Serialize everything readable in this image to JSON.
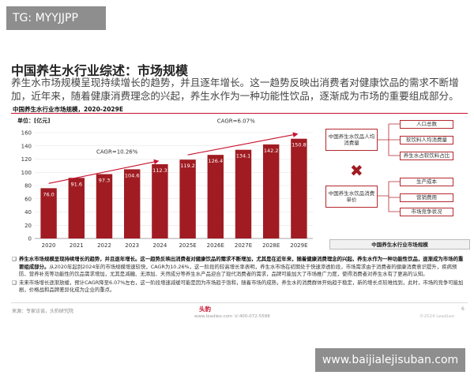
{
  "tag": "TG: MYYJJPP",
  "watermark": "www.baijialejisuban.com",
  "header": {
    "title": "中国养生水行业综述：市场规模",
    "lead": "养生水市场规模呈现持续增长的趋势，并且逐年增长。这一趋势反映出消费者对健康饮品的需求不断增加，近年来，随着健康消费理念的兴起，养生水作为一种功能性饮品，逐渐成为市场的重要组成部分。"
  },
  "chart_data": {
    "type": "bar",
    "title": "中国养生水行业市场规模，2020-2029E",
    "unit": "单位：[亿元]",
    "categories": [
      "2020",
      "2021",
      "2022",
      "2023",
      "2024",
      "2025E",
      "2026E",
      "2027E",
      "2028E",
      "2029E"
    ],
    "values": [
      76.0,
      91.6,
      97.3,
      104.6,
      112.3,
      119.2,
      126.4,
      134.1,
      142.2,
      150.8
    ],
    "value_labels": [
      "76.0",
      "91.6",
      "97.3",
      "104.6",
      "112.3",
      "119.2",
      "126.4",
      "134.1",
      "142.2",
      "150.8"
    ],
    "y_ticks": [
      "0",
      "20",
      "40",
      "60",
      "80",
      "100",
      "120",
      "140",
      "160"
    ],
    "ylim": [
      0,
      160
    ],
    "grid": true,
    "annotations": [
      "CAGR=10.26%",
      "CAGR=6.07%"
    ],
    "colors": {
      "bar": "#a01c22",
      "arrow": "#c8102e"
    }
  },
  "flowchart": {
    "top_center": "中国养生水饮品人均消费量",
    "top_items": [
      "人口总数",
      "软饮料人均消费量",
      "养生水占软饮料占比"
    ],
    "operator": "✖",
    "bottom_center": "中国养生水饮品消费单价",
    "bottom_items": [
      "生产成本",
      "营销费用",
      "市场竞争状况"
    ],
    "result": "中国养生水行业市场规模"
  },
  "notes": [
    {
      "bold": "养生水市场规模呈现持续增长的趋势，并且逐年增长。这一趋势反映出消费者对健康饮品的需求不断增加，尤其是在近年来，随着健康消费理念的兴起，养生水作为一种功能性饮品，逐渐成为市场的重要组成部分。",
      "text": "从2020年起到2024年的市场规模增速较快，CAGR为10.26%，这一阶段的较高增长率表明，养生水市场在初期处于快速渗透阶段，市场需求由于消费者的健康消费意识提升，疾病预防、营养补充等功能性的饮品需求增加，尤其是减糖、无添加、天然成分等养生水产品迎合了现代消费者的需求，品牌可能加大了市场推广力度，使得消费者对养生水有了更高的认知。"
    },
    {
      "bold": "",
      "text": "未来市场增长逐渐放缓，预计CAGR降至6.07%左右，这一阶段增速减缓可能是因为市场趋于饱和，随着市场的成熟，养生水的消费群体开始趋于稳定，新的增长点较难找到，此时，市场的竞争可能加剧，价格战和品牌差异化成为企业的重点。"
    }
  ],
  "footer": {
    "source": "来源：专家访谈，头豹研究院",
    "brand": "头豹",
    "brand_sub": "www.leadleo.com  ☏400-072-5588",
    "page": "6",
    "copyright": "©2024 LeadLeo"
  }
}
